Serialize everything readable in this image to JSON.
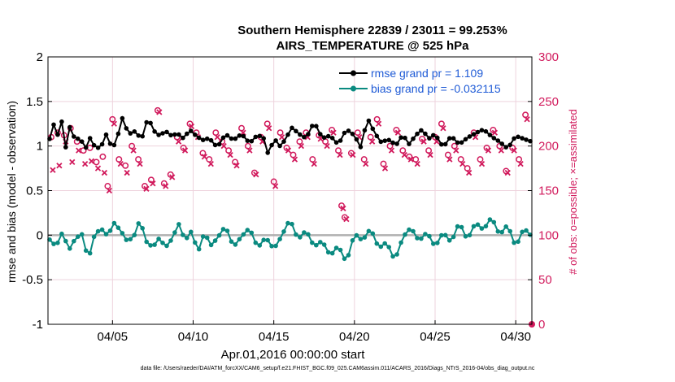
{
  "chart_data": {
    "type": "line",
    "title": "Southern Hemisphere 22839 / 23011 = 99.253%",
    "subtitle": "AIRS_TEMPERATURE @ 525 hPa",
    "xlabel": "Apr.01,2016 00:00:00 start",
    "ylabel_left": "rmse and bias (model - observation)",
    "ylabel_right": "# of obs: o=possible; ×=assimilated",
    "ylim_left": [
      -1,
      2
    ],
    "ylim_right": [
      0,
      300
    ],
    "xlim_days": [
      1,
      31
    ],
    "yticks_left": [
      -1,
      -0.5,
      0,
      0.5,
      1,
      1.5,
      2
    ],
    "ytick_labels_left": [
      "-1",
      "-0.5",
      "0",
      "0.5",
      "1",
      "1.5",
      "2"
    ],
    "yticks_right": [
      0,
      50,
      100,
      150,
      200,
      250,
      300
    ],
    "ytick_labels_right": [
      "0",
      "50",
      "100",
      "150",
      "200",
      "250",
      "300"
    ],
    "xticks": [
      5,
      10,
      15,
      20,
      25,
      30
    ],
    "xtick_labels": [
      "04/05",
      "04/10",
      "04/15",
      "04/20",
      "04/25",
      "04/30"
    ],
    "legend_position": "top-right",
    "colors": {
      "rmse": "#000000",
      "bias": "#0a8a80",
      "obs": "#d11a5c",
      "zero_line": "#b0b0b0",
      "legend_text": "#1f5bd6"
    },
    "series": [
      {
        "name": "rmse grand pr = 1.109",
        "axis": "left",
        "color": "#000000",
        "anchors_x": [
          1.1,
          1.3,
          1.6,
          1.8,
          2.1,
          2.3,
          2.7,
          3.0,
          3.3,
          3.6,
          4.0,
          4.4,
          4.7,
          4.9,
          5.2,
          5.6,
          6.0,
          6.4,
          6.8,
          7.2,
          7.6,
          7.9,
          8.3,
          8.7,
          9.0,
          9.4,
          9.8,
          10.2,
          10.6,
          11.0,
          11.5,
          12.0,
          12.5,
          13.0,
          13.5,
          14.0,
          14.4,
          14.7,
          15.0,
          15.3,
          15.7,
          16.1,
          16.6,
          17.0,
          17.5,
          18.0,
          18.5,
          19.0,
          19.5,
          20.0,
          20.4,
          20.8,
          21.2,
          21.6,
          22.1,
          22.6,
          23.0,
          23.4,
          23.8,
          24.2,
          24.6,
          25.0,
          25.5,
          26.0,
          26.5,
          27.0,
          27.5,
          28.0,
          28.5,
          29.0,
          29.5,
          30.0,
          30.5,
          30.9
        ],
        "anchors_y": [
          1.08,
          1.25,
          1.1,
          1.3,
          0.95,
          1.2,
          1.05,
          1.1,
          0.98,
          1.12,
          1.0,
          1.05,
          1.18,
          0.98,
          1.0,
          1.28,
          1.1,
          1.15,
          1.08,
          1.35,
          1.2,
          1.15,
          1.18,
          1.1,
          1.12,
          1.05,
          1.15,
          1.1,
          1.08,
          1.12,
          1.02,
          1.15,
          1.05,
          1.1,
          1.0,
          1.12,
          1.1,
          0.9,
          1.15,
          1.02,
          1.08,
          1.2,
          1.1,
          1.05,
          1.25,
          1.1,
          1.15,
          1.05,
          1.2,
          1.1,
          0.95,
          1.28,
          1.15,
          1.05,
          1.1,
          1.05,
          1.15,
          1.02,
          1.1,
          1.15,
          1.05,
          1.12,
          1.0,
          1.15,
          1.05,
          1.1,
          1.12,
          1.15,
          1.08,
          1.05,
          1.0,
          1.15,
          1.1,
          1.05
        ]
      },
      {
        "name": "bias grand pr = -0.032115",
        "axis": "left",
        "color": "#0a8a80",
        "anchors_x": [
          1.1,
          1.5,
          1.9,
          2.3,
          2.7,
          3.1,
          3.5,
          3.9,
          4.3,
          4.7,
          5.1,
          5.5,
          5.9,
          6.3,
          6.7,
          7.1,
          7.5,
          7.9,
          8.3,
          8.7,
          9.1,
          9.5,
          9.9,
          10.3,
          10.7,
          11.1,
          11.5,
          12.0,
          12.5,
          13.0,
          13.5,
          14.0,
          14.5,
          15.0,
          15.5,
          16.0,
          16.5,
          17.0,
          17.5,
          18.0,
          18.5,
          19.0,
          19.5,
          20.0,
          20.5,
          21.0,
          21.5,
          22.0,
          22.5,
          23.0,
          23.5,
          24.0,
          24.5,
          25.0,
          25.5,
          26.0,
          26.5,
          27.0,
          27.5,
          28.0,
          28.5,
          29.0,
          29.5,
          30.0,
          30.5,
          30.9
        ],
        "anchors_y": [
          -0.05,
          -0.15,
          0.0,
          -0.2,
          -0.05,
          0.02,
          -0.25,
          0.05,
          0.1,
          0.0,
          0.12,
          0.02,
          -0.1,
          -0.05,
          0.18,
          -0.05,
          -0.1,
          0.0,
          -0.12,
          -0.05,
          0.1,
          -0.1,
          0.02,
          -0.2,
          0.05,
          -0.08,
          0.0,
          0.12,
          -0.15,
          -0.05,
          0.05,
          -0.15,
          0.0,
          -0.12,
          0.02,
          0.18,
          -0.08,
          0.02,
          -0.15,
          -0.05,
          -0.2,
          -0.08,
          -0.3,
          0.0,
          -0.1,
          0.05,
          -0.15,
          -0.05,
          -0.25,
          0.0,
          0.08,
          -0.1,
          0.0,
          -0.15,
          0.05,
          -0.05,
          0.18,
          -0.05,
          0.12,
          0.02,
          0.18,
          0.0,
          0.15,
          -0.1,
          0.1,
          0.0
        ]
      },
      {
        "name": "# of obs possible",
        "axis": "right",
        "marker": "o",
        "color": "#d11a5c",
        "x": [
          1.2,
          1.6,
          2.0,
          2.4,
          2.8,
          3.2,
          3.6,
          4.0,
          4.4,
          4.7,
          5.0,
          5.4,
          5.8,
          6.2,
          6.6,
          7.0,
          7.4,
          7.8,
          8.2,
          8.6,
          9.0,
          9.4,
          9.8,
          10.2,
          10.6,
          11.0,
          11.4,
          11.8,
          12.2,
          12.6,
          13.0,
          13.4,
          13.8,
          14.2,
          14.6,
          15.0,
          15.4,
          15.8,
          16.2,
          16.6,
          17.0,
          17.4,
          17.8,
          18.2,
          18.6,
          19.0,
          19.2,
          19.4,
          19.8,
          20.2,
          20.6,
          21.0,
          21.4,
          21.8,
          22.2,
          22.6,
          23.0,
          23.4,
          23.8,
          24.2,
          24.6,
          25.0,
          25.4,
          25.8,
          26.2,
          26.6,
          27.0,
          27.4,
          27.8,
          28.2,
          28.6,
          29.0,
          29.4,
          29.8,
          30.2,
          30.6
        ],
        "y": [
          210,
          215,
          212,
          220,
          205,
          195,
          198,
          182,
          188,
          155,
          230,
          185,
          178,
          200,
          185,
          155,
          162,
          240,
          158,
          168,
          210,
          198,
          225,
          215,
          192,
          185,
          215,
          205,
          195,
          182,
          220,
          200,
          170,
          210,
          225,
          160,
          215,
          198,
          190,
          205,
          215,
          185,
          212,
          205,
          218,
          195,
          133,
          120,
          192,
          215,
          185,
          210,
          230,
          180,
          200,
          218,
          195,
          188,
          185,
          208,
          195,
          210,
          225,
          190,
          200,
          185,
          175,
          215,
          185,
          198,
          218,
          200,
          172,
          198,
          185,
          235
        ]
      },
      {
        "name": "# of obs assimilated",
        "axis": "right",
        "marker": "x",
        "color": "#d11a5c",
        "x": [
          1.3,
          1.7,
          2.1,
          2.5,
          2.9,
          3.3,
          3.7,
          4.1,
          4.5,
          4.8,
          5.1,
          5.5,
          5.9,
          6.3,
          6.7,
          7.1,
          7.5,
          7.9,
          8.3,
          8.7,
          9.1,
          9.5,
          9.9,
          10.3,
          10.7,
          11.1,
          11.5,
          11.9,
          12.3,
          12.7,
          13.1,
          13.5,
          13.9,
          14.3,
          14.7,
          15.1,
          15.5,
          15.9,
          16.3,
          16.7,
          17.1,
          17.5,
          17.9,
          18.3,
          18.7,
          19.1,
          19.3,
          19.5,
          19.9,
          20.3,
          20.7,
          21.1,
          21.5,
          21.9,
          22.3,
          22.7,
          23.1,
          23.5,
          23.9,
          24.3,
          24.7,
          25.1,
          25.5,
          25.9,
          26.3,
          26.7,
          27.1,
          27.5,
          27.9,
          28.3,
          28.7,
          29.1,
          29.5,
          29.9,
          30.3,
          30.7
        ],
        "y": [
          173,
          178,
          205,
          182,
          195,
          180,
          183,
          175,
          170,
          150,
          225,
          180,
          170,
          195,
          180,
          152,
          158,
          238,
          155,
          165,
          205,
          195,
          222,
          210,
          188,
          180,
          210,
          200,
          190,
          178,
          215,
          195,
          168,
          205,
          220,
          155,
          210,
          195,
          185,
          200,
          210,
          180,
          208,
          200,
          215,
          190,
          130,
          118,
          190,
          210,
          180,
          205,
          225,
          175,
          195,
          215,
          190,
          185,
          180,
          205,
          190,
          205,
          220,
          185,
          195,
          180,
          170,
          210,
          180,
          195,
          215,
          195,
          170,
          195,
          180,
          230
        ]
      }
    ]
  },
  "footnote": "data file: /Users/raeder/DAI/ATM_forcXX/CAM6_setup/f.e21.FHIST_BGC.f09_025.CAM6assim.011/ACARS_2016/Diags_NTrS_2016-04/obs_diag_output.nc"
}
